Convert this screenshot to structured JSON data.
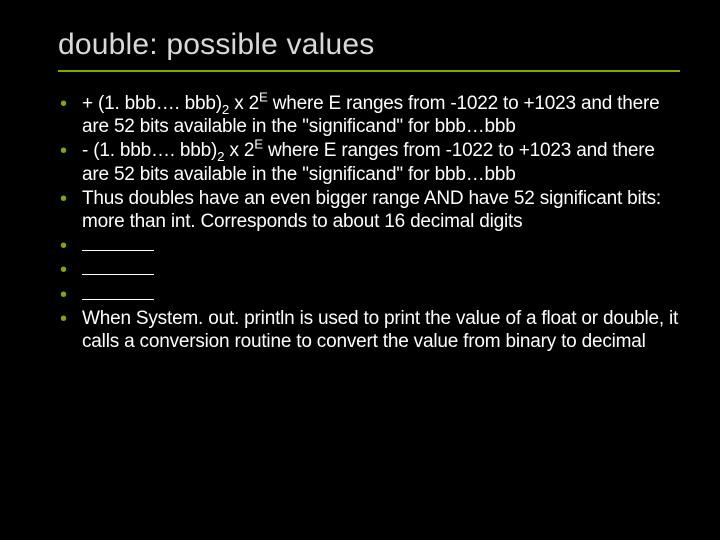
{
  "slide": {
    "title": "double: possible values",
    "underline_color": "#7cab00",
    "bullet_color": "#7cab00",
    "background_color": "#000000",
    "text_color": "#ffffff",
    "title_color": "#d9d9d9",
    "title_fontsize": 30,
    "body_fontsize": 19,
    "bullets": [
      {
        "parts": [
          {
            "t": "+ (1. bbb…. bbb)"
          },
          {
            "t": "2",
            "sub": true
          },
          {
            "t": " x 2"
          },
          {
            "t": "E",
            "sup": true
          },
          {
            "t": "  where E ranges from -1022 to +1023 and there are 52 bits available in the \"significand\" for bbb…bbb"
          }
        ]
      },
      {
        "parts": [
          {
            "t": "- (1. bbb…. bbb)"
          },
          {
            "t": "2",
            "sub": true
          },
          {
            "t": " x 2"
          },
          {
            "t": "E",
            "sup": true
          },
          {
            "t": "  where E ranges from -1022 to +1023 and there are 52 bits available in the \"significand\" for bbb…bbb"
          }
        ]
      },
      {
        "parts": [
          {
            "t": "Thus doubles have an even bigger range AND have 52 significant bits: more than int. Corresponds to about 16 decimal digits"
          }
        ]
      },
      {
        "blank": true
      },
      {
        "blank": true
      },
      {
        "blank": true
      },
      {
        "parts": [
          {
            "t": "When System. out. println is used to print the value of a float or double, it calls a conversion routine to convert the value from binary to decimal"
          }
        ]
      }
    ]
  }
}
